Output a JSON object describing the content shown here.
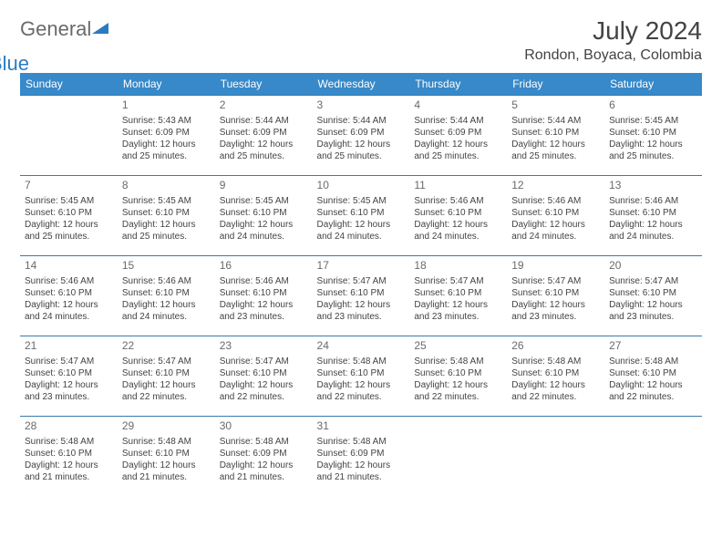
{
  "brand": {
    "part1": "General",
    "part2": "Blue"
  },
  "title": "July 2024",
  "location": "Rondon, Boyaca, Colombia",
  "colors": {
    "header_bg": "#3789c9",
    "header_text": "#ffffff",
    "row_border": "#3b79ad",
    "text": "#434343",
    "daynum": "#6a6a6a",
    "brand_gray": "#6a6a6a",
    "brand_blue": "#2b7bbf"
  },
  "weekdays": [
    "Sunday",
    "Monday",
    "Tuesday",
    "Wednesday",
    "Thursday",
    "Friday",
    "Saturday"
  ],
  "weeks": [
    [
      null,
      {
        "n": "1",
        "sr": "Sunrise: 5:43 AM",
        "ss": "Sunset: 6:09 PM",
        "d1": "Daylight: 12 hours",
        "d2": "and 25 minutes."
      },
      {
        "n": "2",
        "sr": "Sunrise: 5:44 AM",
        "ss": "Sunset: 6:09 PM",
        "d1": "Daylight: 12 hours",
        "d2": "and 25 minutes."
      },
      {
        "n": "3",
        "sr": "Sunrise: 5:44 AM",
        "ss": "Sunset: 6:09 PM",
        "d1": "Daylight: 12 hours",
        "d2": "and 25 minutes."
      },
      {
        "n": "4",
        "sr": "Sunrise: 5:44 AM",
        "ss": "Sunset: 6:09 PM",
        "d1": "Daylight: 12 hours",
        "d2": "and 25 minutes."
      },
      {
        "n": "5",
        "sr": "Sunrise: 5:44 AM",
        "ss": "Sunset: 6:10 PM",
        "d1": "Daylight: 12 hours",
        "d2": "and 25 minutes."
      },
      {
        "n": "6",
        "sr": "Sunrise: 5:45 AM",
        "ss": "Sunset: 6:10 PM",
        "d1": "Daylight: 12 hours",
        "d2": "and 25 minutes."
      }
    ],
    [
      {
        "n": "7",
        "sr": "Sunrise: 5:45 AM",
        "ss": "Sunset: 6:10 PM",
        "d1": "Daylight: 12 hours",
        "d2": "and 25 minutes."
      },
      {
        "n": "8",
        "sr": "Sunrise: 5:45 AM",
        "ss": "Sunset: 6:10 PM",
        "d1": "Daylight: 12 hours",
        "d2": "and 25 minutes."
      },
      {
        "n": "9",
        "sr": "Sunrise: 5:45 AM",
        "ss": "Sunset: 6:10 PM",
        "d1": "Daylight: 12 hours",
        "d2": "and 24 minutes."
      },
      {
        "n": "10",
        "sr": "Sunrise: 5:45 AM",
        "ss": "Sunset: 6:10 PM",
        "d1": "Daylight: 12 hours",
        "d2": "and 24 minutes."
      },
      {
        "n": "11",
        "sr": "Sunrise: 5:46 AM",
        "ss": "Sunset: 6:10 PM",
        "d1": "Daylight: 12 hours",
        "d2": "and 24 minutes."
      },
      {
        "n": "12",
        "sr": "Sunrise: 5:46 AM",
        "ss": "Sunset: 6:10 PM",
        "d1": "Daylight: 12 hours",
        "d2": "and 24 minutes."
      },
      {
        "n": "13",
        "sr": "Sunrise: 5:46 AM",
        "ss": "Sunset: 6:10 PM",
        "d1": "Daylight: 12 hours",
        "d2": "and 24 minutes."
      }
    ],
    [
      {
        "n": "14",
        "sr": "Sunrise: 5:46 AM",
        "ss": "Sunset: 6:10 PM",
        "d1": "Daylight: 12 hours",
        "d2": "and 24 minutes."
      },
      {
        "n": "15",
        "sr": "Sunrise: 5:46 AM",
        "ss": "Sunset: 6:10 PM",
        "d1": "Daylight: 12 hours",
        "d2": "and 24 minutes."
      },
      {
        "n": "16",
        "sr": "Sunrise: 5:46 AM",
        "ss": "Sunset: 6:10 PM",
        "d1": "Daylight: 12 hours",
        "d2": "and 23 minutes."
      },
      {
        "n": "17",
        "sr": "Sunrise: 5:47 AM",
        "ss": "Sunset: 6:10 PM",
        "d1": "Daylight: 12 hours",
        "d2": "and 23 minutes."
      },
      {
        "n": "18",
        "sr": "Sunrise: 5:47 AM",
        "ss": "Sunset: 6:10 PM",
        "d1": "Daylight: 12 hours",
        "d2": "and 23 minutes."
      },
      {
        "n": "19",
        "sr": "Sunrise: 5:47 AM",
        "ss": "Sunset: 6:10 PM",
        "d1": "Daylight: 12 hours",
        "d2": "and 23 minutes."
      },
      {
        "n": "20",
        "sr": "Sunrise: 5:47 AM",
        "ss": "Sunset: 6:10 PM",
        "d1": "Daylight: 12 hours",
        "d2": "and 23 minutes."
      }
    ],
    [
      {
        "n": "21",
        "sr": "Sunrise: 5:47 AM",
        "ss": "Sunset: 6:10 PM",
        "d1": "Daylight: 12 hours",
        "d2": "and 23 minutes."
      },
      {
        "n": "22",
        "sr": "Sunrise: 5:47 AM",
        "ss": "Sunset: 6:10 PM",
        "d1": "Daylight: 12 hours",
        "d2": "and 22 minutes."
      },
      {
        "n": "23",
        "sr": "Sunrise: 5:47 AM",
        "ss": "Sunset: 6:10 PM",
        "d1": "Daylight: 12 hours",
        "d2": "and 22 minutes."
      },
      {
        "n": "24",
        "sr": "Sunrise: 5:48 AM",
        "ss": "Sunset: 6:10 PM",
        "d1": "Daylight: 12 hours",
        "d2": "and 22 minutes."
      },
      {
        "n": "25",
        "sr": "Sunrise: 5:48 AM",
        "ss": "Sunset: 6:10 PM",
        "d1": "Daylight: 12 hours",
        "d2": "and 22 minutes."
      },
      {
        "n": "26",
        "sr": "Sunrise: 5:48 AM",
        "ss": "Sunset: 6:10 PM",
        "d1": "Daylight: 12 hours",
        "d2": "and 22 minutes."
      },
      {
        "n": "27",
        "sr": "Sunrise: 5:48 AM",
        "ss": "Sunset: 6:10 PM",
        "d1": "Daylight: 12 hours",
        "d2": "and 22 minutes."
      }
    ],
    [
      {
        "n": "28",
        "sr": "Sunrise: 5:48 AM",
        "ss": "Sunset: 6:10 PM",
        "d1": "Daylight: 12 hours",
        "d2": "and 21 minutes."
      },
      {
        "n": "29",
        "sr": "Sunrise: 5:48 AM",
        "ss": "Sunset: 6:10 PM",
        "d1": "Daylight: 12 hours",
        "d2": "and 21 minutes."
      },
      {
        "n": "30",
        "sr": "Sunrise: 5:48 AM",
        "ss": "Sunset: 6:09 PM",
        "d1": "Daylight: 12 hours",
        "d2": "and 21 minutes."
      },
      {
        "n": "31",
        "sr": "Sunrise: 5:48 AM",
        "ss": "Sunset: 6:09 PM",
        "d1": "Daylight: 12 hours",
        "d2": "and 21 minutes."
      },
      null,
      null,
      null
    ]
  ]
}
